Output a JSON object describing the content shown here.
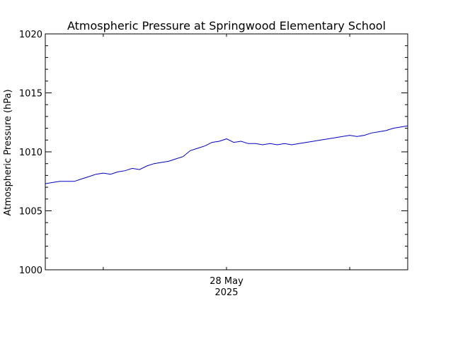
{
  "chart_data": {
    "type": "line",
    "title": "Atmospheric Pressure at Springwood Elementary School",
    "ylabel": "Atmospheric Pressure (hPa)",
    "xlabel": "",
    "ylim": [
      1000,
      1020
    ],
    "y_ticks": [
      1000,
      1005,
      1010,
      1015,
      1020
    ],
    "y_tick_labels": [
      "1000",
      "1005",
      "1010",
      "1015",
      "1020"
    ],
    "x_tick_labels": [
      {
        "line1": "28 May",
        "line2": "2025"
      }
    ],
    "line_color": "#0000cc",
    "grid": false,
    "series": [
      {
        "x": [
          0.0,
          0.02,
          0.04,
          0.06,
          0.08,
          0.1,
          0.12,
          0.14,
          0.16,
          0.18,
          0.2,
          0.22,
          0.24,
          0.26,
          0.28,
          0.3,
          0.32,
          0.34,
          0.36,
          0.38,
          0.4,
          0.42,
          0.44,
          0.46,
          0.48,
          0.5,
          0.52,
          0.54,
          0.56,
          0.58,
          0.6,
          0.62,
          0.64,
          0.66,
          0.68,
          0.7,
          0.72,
          0.74,
          0.76,
          0.78,
          0.8,
          0.82,
          0.84,
          0.86,
          0.88,
          0.9,
          0.92,
          0.94,
          0.96,
          0.98,
          1.0
        ],
        "values": [
          1007.3,
          1007.4,
          1007.5,
          1007.5,
          1007.5,
          1007.7,
          1007.9,
          1008.1,
          1008.2,
          1008.1,
          1008.3,
          1008.4,
          1008.6,
          1008.5,
          1008.8,
          1009.0,
          1009.1,
          1009.2,
          1009.4,
          1009.6,
          1010.1,
          1010.3,
          1010.5,
          1010.8,
          1010.9,
          1011.1,
          1010.8,
          1010.9,
          1010.7,
          1010.7,
          1010.6,
          1010.7,
          1010.6,
          1010.7,
          1010.6,
          1010.7,
          1010.8,
          1010.9,
          1011.0,
          1011.1,
          1011.2,
          1011.3,
          1011.4,
          1011.3,
          1011.4,
          1011.6,
          1011.7,
          1011.8,
          1012.0,
          1012.1,
          1012.2
        ]
      }
    ]
  }
}
